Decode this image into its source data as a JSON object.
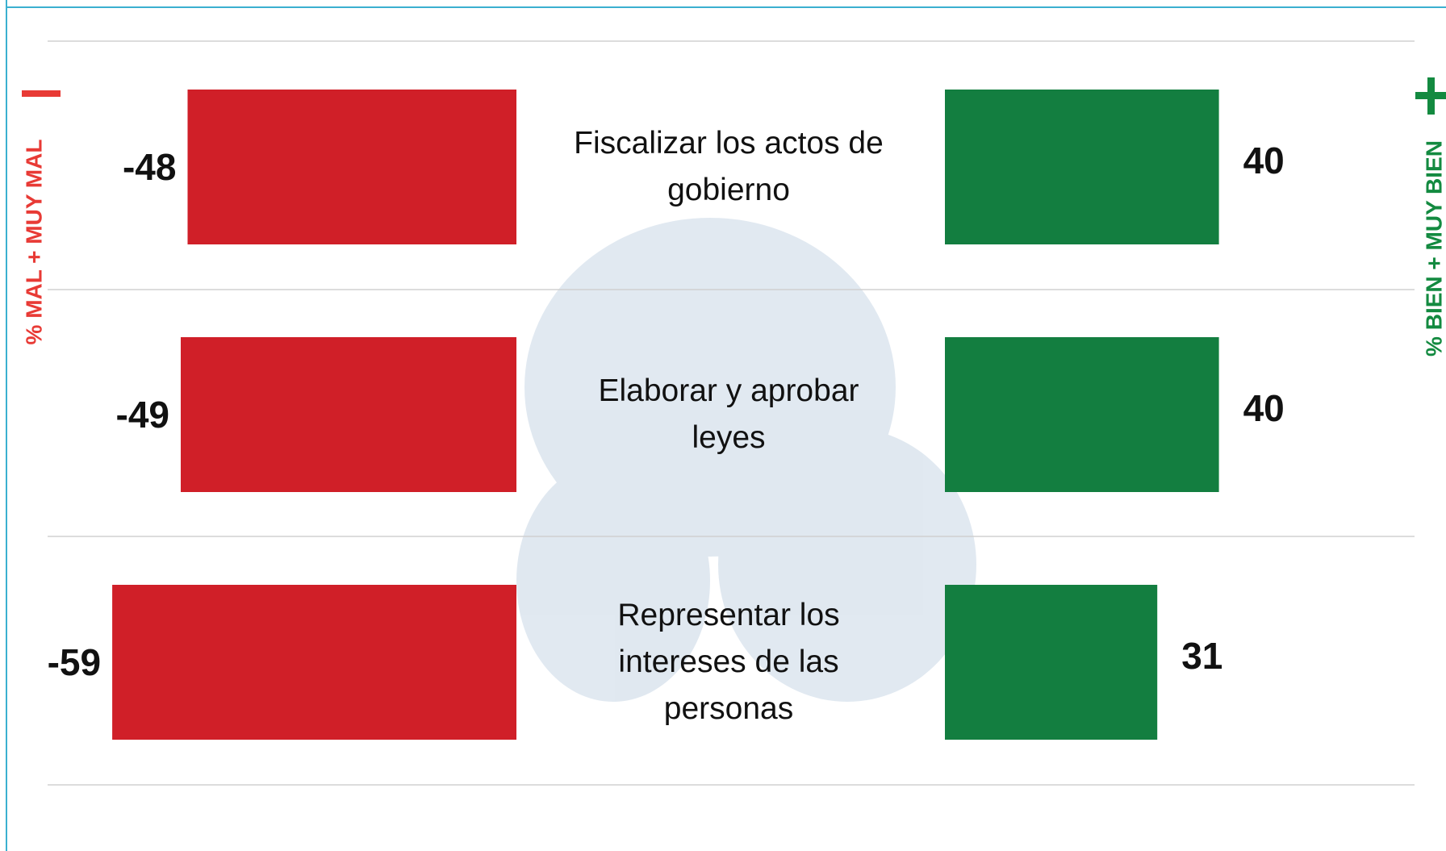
{
  "chart_data": {
    "type": "diverging-bar",
    "categories": [
      "Fiscalizar los actos de gobierno",
      "Elaborar y aprobar leyes",
      "Representar los intereses de las personas"
    ],
    "series": [
      {
        "name": "% MAL + MUY MAL",
        "color": "#d01f28",
        "label_color": "#e83a35",
        "values": [
          -48,
          -49,
          -59
        ]
      },
      {
        "name": "% BIEN + MUY BIEN",
        "color": "#137e40",
        "label_color": "#138a40",
        "values": [
          40,
          40,
          31
        ]
      }
    ]
  }
}
